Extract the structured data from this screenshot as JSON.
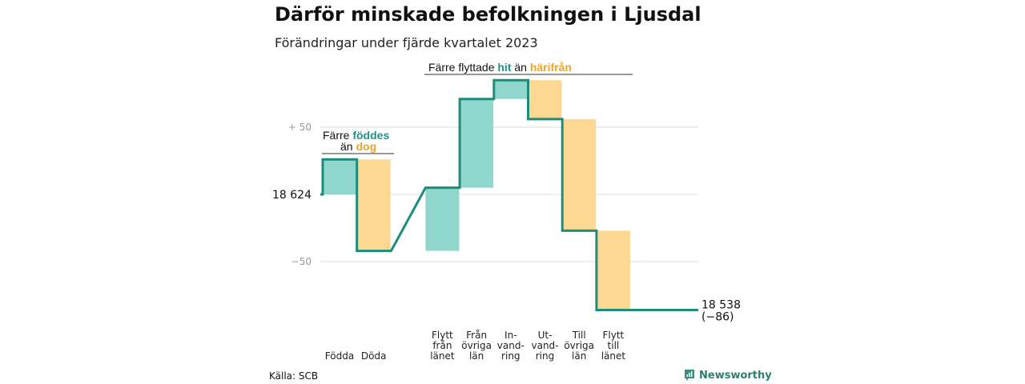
{
  "title": "Därför minskade befolkningen i Ljusdal",
  "subtitle": "Förändringar under fjärde kvartalet 2023",
  "source": "Källa: SCB",
  "logo_text": "Newsworthy",
  "colors": {
    "increase": "#8fd6cd",
    "decrease": "#fcd892",
    "line": "#1e8c7b",
    "grid": "#dddddd",
    "teal_text": "#1e9485",
    "orange_text": "#e9a62a"
  },
  "annotations": {
    "birth": {
      "line1_pre": "Färre ",
      "line1_hi": "föddes",
      "line2_pre": "än ",
      "line2_hi": "dog"
    },
    "migration": {
      "pre": "Färre flyttade ",
      "hi1": "hit",
      "mid": " än ",
      "hi2": "härifrån"
    }
  },
  "chart_data": {
    "type": "waterfall",
    "title": "Därför minskade befolkningen i Ljusdal",
    "subtitle": "Förändringar under fjärde kvartalet 2023",
    "start_value": 18624,
    "start_label": "18 624",
    "end_value": 18538,
    "end_label": "18 538",
    "end_change_label": "(−86)",
    "y_ticks": [
      {
        "value": 50,
        "label": "+ 50"
      },
      {
        "value": -50,
        "label": "−50"
      }
    ],
    "ylim": [
      -95,
      95
    ],
    "groups": [
      {
        "steps": [
          {
            "lines": [
              "Födda"
            ],
            "value": 26,
            "kind": "increase"
          },
          {
            "lines": [
              "Döda"
            ],
            "value": -68,
            "kind": "decrease"
          }
        ]
      },
      {
        "steps": [
          {
            "lines": [
              "Flytt",
              "från",
              "länet"
            ],
            "value": 47,
            "kind": "increase"
          },
          {
            "lines": [
              "Från",
              "övriga",
              "län"
            ],
            "value": 66,
            "kind": "increase"
          },
          {
            "lines": [
              "In-",
              "vand-",
              "ring"
            ],
            "value": 14,
            "kind": "increase"
          },
          {
            "lines": [
              "Ut-",
              "vand-",
              "ring"
            ],
            "value": -29,
            "kind": "decrease"
          },
          {
            "lines": [
              "Till",
              "övriga",
              "län"
            ],
            "value": -83,
            "kind": "decrease"
          },
          {
            "lines": [
              "Flytt",
              "till",
              "länet"
            ],
            "value": -59,
            "kind": "decrease"
          }
        ]
      }
    ]
  }
}
